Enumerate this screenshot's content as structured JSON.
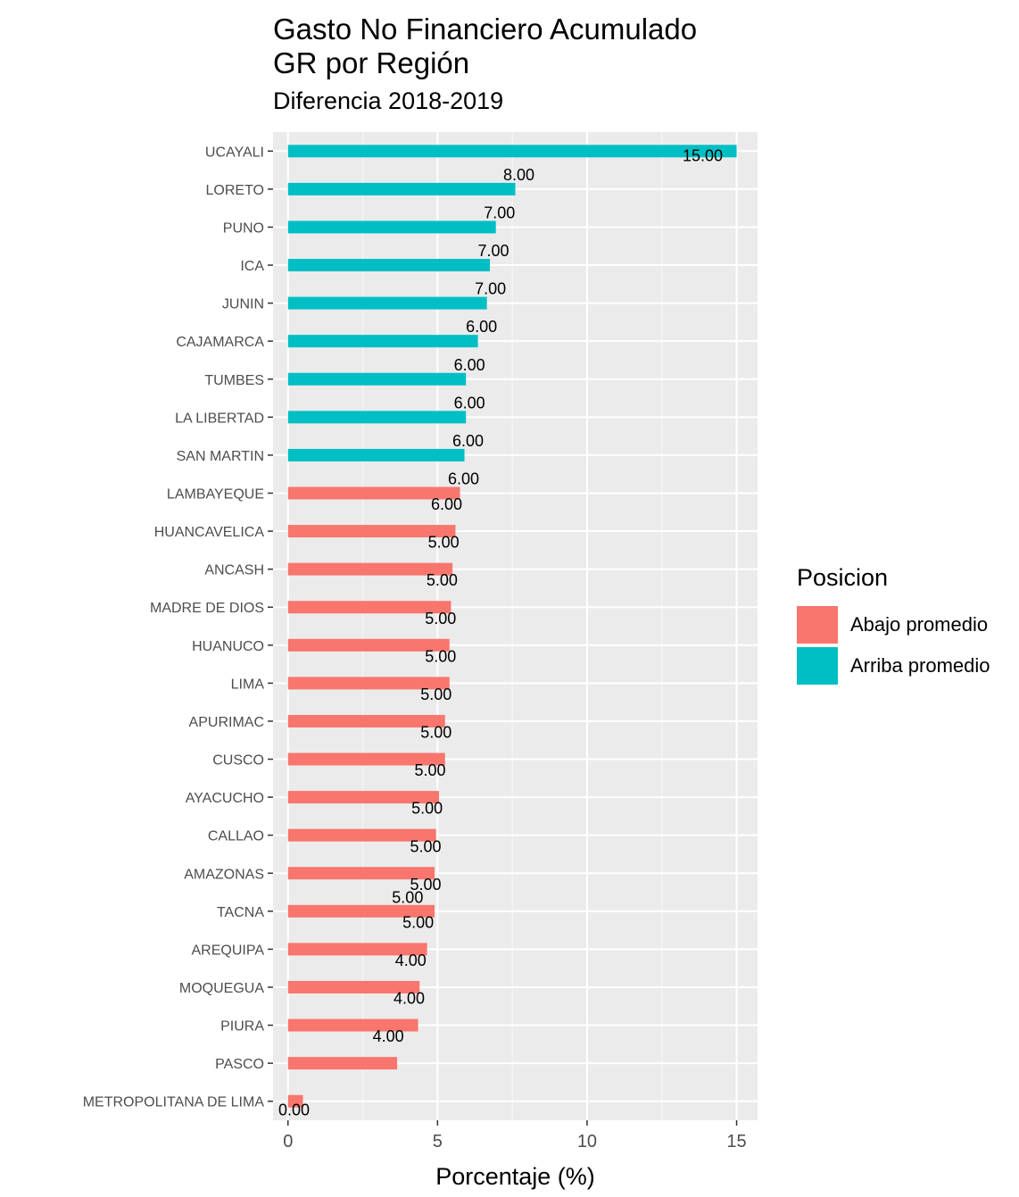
{
  "chart_data": {
    "type": "bar",
    "orientation": "horizontal",
    "title_line1": "Gasto No Financiero Acumulado",
    "title_line2": "GR por Región",
    "subtitle": "Diferencia 2018-2019",
    "xlabel": "Porcentaje (%)",
    "ylabel": "",
    "xlim": [
      -0.5,
      15.7
    ],
    "xticks": [
      0,
      5,
      10,
      15
    ],
    "grid": true,
    "legend": {
      "title": "Posicion",
      "position": "right",
      "entries": [
        {
          "key": "Abajo promedio",
          "label": "Abajo promedio",
          "color": "#F8766D"
        },
        {
          "key": "Arriba promedio",
          "label": "Arriba promedio",
          "color": "#00BFC4"
        }
      ]
    },
    "bars": [
      {
        "region": "UCAYALI",
        "value": 15.0,
        "label": "15.00",
        "group": "Arriba promedio"
      },
      {
        "region": "LORETO",
        "value": 7.6,
        "label": "8.00",
        "group": "Arriba promedio"
      },
      {
        "region": "PUNO",
        "value": 6.95,
        "label": "7.00",
        "group": "Arriba promedio"
      },
      {
        "region": "ICA",
        "value": 6.75,
        "label": "7.00",
        "group": "Arriba promedio"
      },
      {
        "region": "JUNIN",
        "value": 6.65,
        "label": "7.00",
        "group": "Arriba promedio"
      },
      {
        "region": "CAJAMARCA",
        "value": 6.35,
        "label": "6.00",
        "group": "Arriba promedio"
      },
      {
        "region": "TUMBES",
        "value": 5.95,
        "label": "6.00",
        "group": "Arriba promedio"
      },
      {
        "region": "LA LIBERTAD",
        "value": 5.95,
        "label": "6.00",
        "group": "Arriba promedio"
      },
      {
        "region": "SAN MARTIN",
        "value": 5.9,
        "label": "6.00",
        "group": "Arriba promedio"
      },
      {
        "region": "LAMBAYEQUE",
        "value": 5.75,
        "label": "6.00",
        "group": "Abajo promedio"
      },
      {
        "region": "HUANCAVELICA",
        "value": 5.6,
        "label": "6.00",
        "group": "Abajo promedio"
      },
      {
        "region": "ANCASH",
        "value": 5.5,
        "label": "5.00",
        "group": "Abajo promedio"
      },
      {
        "region": "MADRE DE DIOS",
        "value": 5.45,
        "label": "5.00",
        "group": "Abajo promedio"
      },
      {
        "region": "HUANUCO",
        "value": 5.4,
        "label": "5.00",
        "group": "Abajo promedio"
      },
      {
        "region": "LIMA",
        "value": 5.4,
        "label": "5.00",
        "group": "Abajo promedio"
      },
      {
        "region": "APURIMAC",
        "value": 5.25,
        "label": "5.00",
        "group": "Abajo promedio"
      },
      {
        "region": "CUSCO",
        "value": 5.25,
        "label": "5.00",
        "group": "Abajo promedio"
      },
      {
        "region": "AYACUCHO",
        "value": 5.05,
        "label": "5.00",
        "group": "Abajo promedio"
      },
      {
        "region": "CALLAO",
        "value": 4.95,
        "label": "5.00",
        "group": "Abajo promedio"
      },
      {
        "region": "AMAZONAS",
        "value": 4.9,
        "label": "5.00",
        "group": "Abajo promedio"
      },
      {
        "region": "TACNA",
        "value": 4.9,
        "label": "5.00",
        "group": "Abajo promedio"
      },
      {
        "region": "AREQUIPA",
        "value": 4.65,
        "label": "5.00",
        "group": "Abajo promedio"
      },
      {
        "region": "MOQUEGUA",
        "value": 4.4,
        "label": "4.00",
        "group": "Abajo promedio"
      },
      {
        "region": "PIURA",
        "value": 4.35,
        "label": "4.00",
        "group": "Abajo promedio"
      },
      {
        "region": "PASCO",
        "value": 3.65,
        "label": "4.00",
        "group": "Abajo promedio"
      },
      {
        "region": "METROPOLITANA DE LIMA",
        "value": 0.5,
        "label": "0.00",
        "group": "Abajo promedio"
      }
    ],
    "extra_labels": [
      "5.00"
    ]
  }
}
